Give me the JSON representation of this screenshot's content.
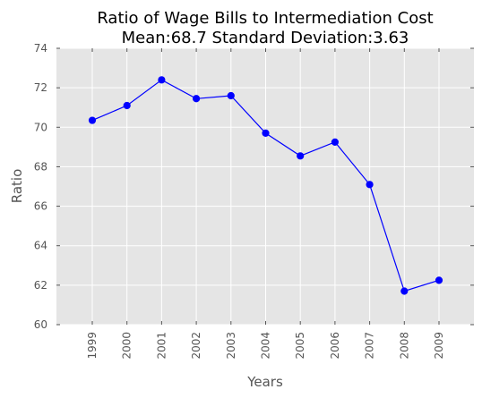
{
  "chart_data": {
    "type": "line",
    "title": "Ratio of Wage Bills to Intermediation Cost",
    "subtitle": "Mean:68.7 Standard Deviation:3.63",
    "xlabel": "Years",
    "ylabel": "Ratio",
    "x": [
      "1999",
      "2000",
      "2001",
      "2002",
      "2003",
      "2004",
      "2005",
      "2006",
      "2007",
      "2008",
      "2009"
    ],
    "series": [
      {
        "values": [
          70.35,
          71.1,
          72.4,
          71.45,
          71.6,
          69.7,
          68.55,
          69.25,
          67.1,
          61.7,
          62.25
        ],
        "color": "#0000ff"
      }
    ],
    "ylim": [
      60,
      74
    ],
    "yticks": [
      60,
      62,
      64,
      66,
      68,
      70,
      72,
      74
    ],
    "grid": true,
    "background": "#e5e5e5",
    "grid_color": "#ffffff"
  }
}
